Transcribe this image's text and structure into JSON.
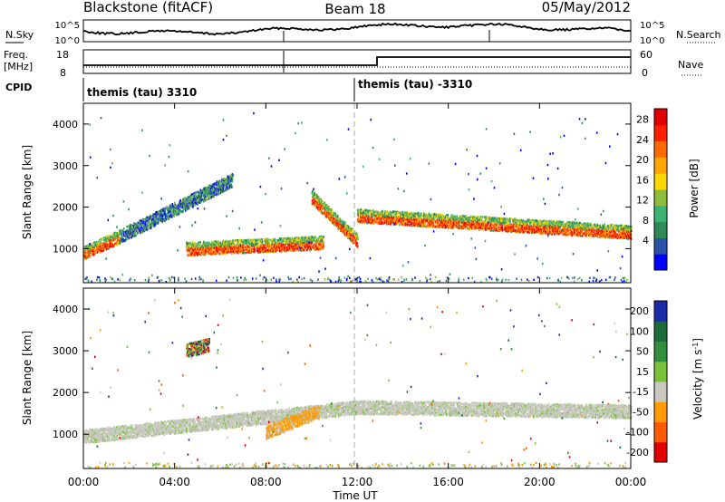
{
  "header": {
    "station": "Blackstone (fitACF)",
    "beam": "Beam 18",
    "date": "05/May/2012"
  },
  "panels": {
    "noise": {
      "left_label": "N.Sky",
      "right_label": "N.Search",
      "left_ticks": [
        "10^5",
        "10^0"
      ],
      "right_ticks": [
        "10^5",
        "10^0"
      ]
    },
    "freq": {
      "left_label_1": "Freq.",
      "left_label_2": "[MHz]",
      "right_label": "Nave",
      "left_ticks": [
        "18",
        "8"
      ],
      "right_ticks": [
        "60",
        "0"
      ]
    },
    "cpid": {
      "label": "CPID",
      "segments": [
        {
          "start_hour": 0,
          "name": "themis (tau) 3310"
        },
        {
          "start_hour": 12,
          "name": "themis (tau) -3310"
        }
      ]
    }
  },
  "x_axis": {
    "label": "Time UT",
    "ticks": [
      "00:00",
      "04:00",
      "08:00",
      "12:00",
      "16:00",
      "20:00",
      "00:00"
    ],
    "range_hours": [
      0,
      24
    ]
  },
  "chart_data": [
    {
      "type": "heatmap",
      "title": "",
      "xlabel": "Time UT",
      "ylabel": "Slant Range [km]",
      "x_range_hours": [
        0,
        24
      ],
      "ylim": [
        180,
        4500
      ],
      "y_ticks": [
        1000,
        2000,
        3000,
        4000
      ],
      "colorbar": {
        "label": "Power [dB]",
        "ticks": [
          "4",
          "8",
          "12",
          "16",
          "20",
          "24",
          "28"
        ],
        "colors": [
          "#0000ff",
          "#2a52a8",
          "#2e8b57",
          "#3cb371",
          "#8fbc3a",
          "#ffd700",
          "#ffa500",
          "#ff6a00",
          "#ff2000",
          "#e00000"
        ]
      },
      "features": [
        {
          "t0": 0.0,
          "t1": 1.6,
          "r_start": 850,
          "r_end": 1250,
          "value": "high"
        },
        {
          "t0": 1.6,
          "t1": 6.5,
          "r_start": 1250,
          "r_end": 2600,
          "value": "medium"
        },
        {
          "t0": 4.5,
          "t1": 10.5,
          "r_start": 950,
          "r_end": 1100,
          "value": "high"
        },
        {
          "t0": 10.0,
          "t1": 12.0,
          "r_start": 2200,
          "r_end": 1150,
          "value": "high"
        },
        {
          "t0": 12.0,
          "t1": 24.0,
          "r_start": 1750,
          "r_end": 1350,
          "value": "high"
        }
      ]
    },
    {
      "type": "heatmap",
      "title": "",
      "xlabel": "Time UT",
      "ylabel": "Slant Range [km]",
      "x_range_hours": [
        0,
        24
      ],
      "ylim": [
        180,
        4500
      ],
      "y_ticks": [
        1000,
        2000,
        3000,
        4000
      ],
      "colorbar": {
        "label": "Velocity [m s^-1]",
        "ticks": [
          "200",
          "100",
          "50",
          "15",
          "-15",
          "-50",
          "-100",
          "-200"
        ],
        "colors": [
          "#1a2aa8",
          "#1d6b3a",
          "#2f8f3a",
          "#79c23a",
          "#c8c8c0",
          "#ff9a00",
          "#ff5a00",
          "#e00000"
        ]
      },
      "features": [
        {
          "t0": 0.0,
          "t1": 12.0,
          "r_start": 900,
          "r_end": 1600,
          "value": "ground scatter (gray)"
        },
        {
          "t0": 12.0,
          "t1": 24.0,
          "r_start": 1600,
          "r_end": 1500,
          "value": "ground scatter (gray)"
        },
        {
          "t0": 8.0,
          "t1": 10.3,
          "r_start": 1000,
          "r_end": 1500,
          "value": "negative (orange)"
        },
        {
          "t0": 4.5,
          "t1": 5.5,
          "r_start": 2950,
          "r_end": 3100,
          "value": "mixed"
        }
      ]
    }
  ]
}
